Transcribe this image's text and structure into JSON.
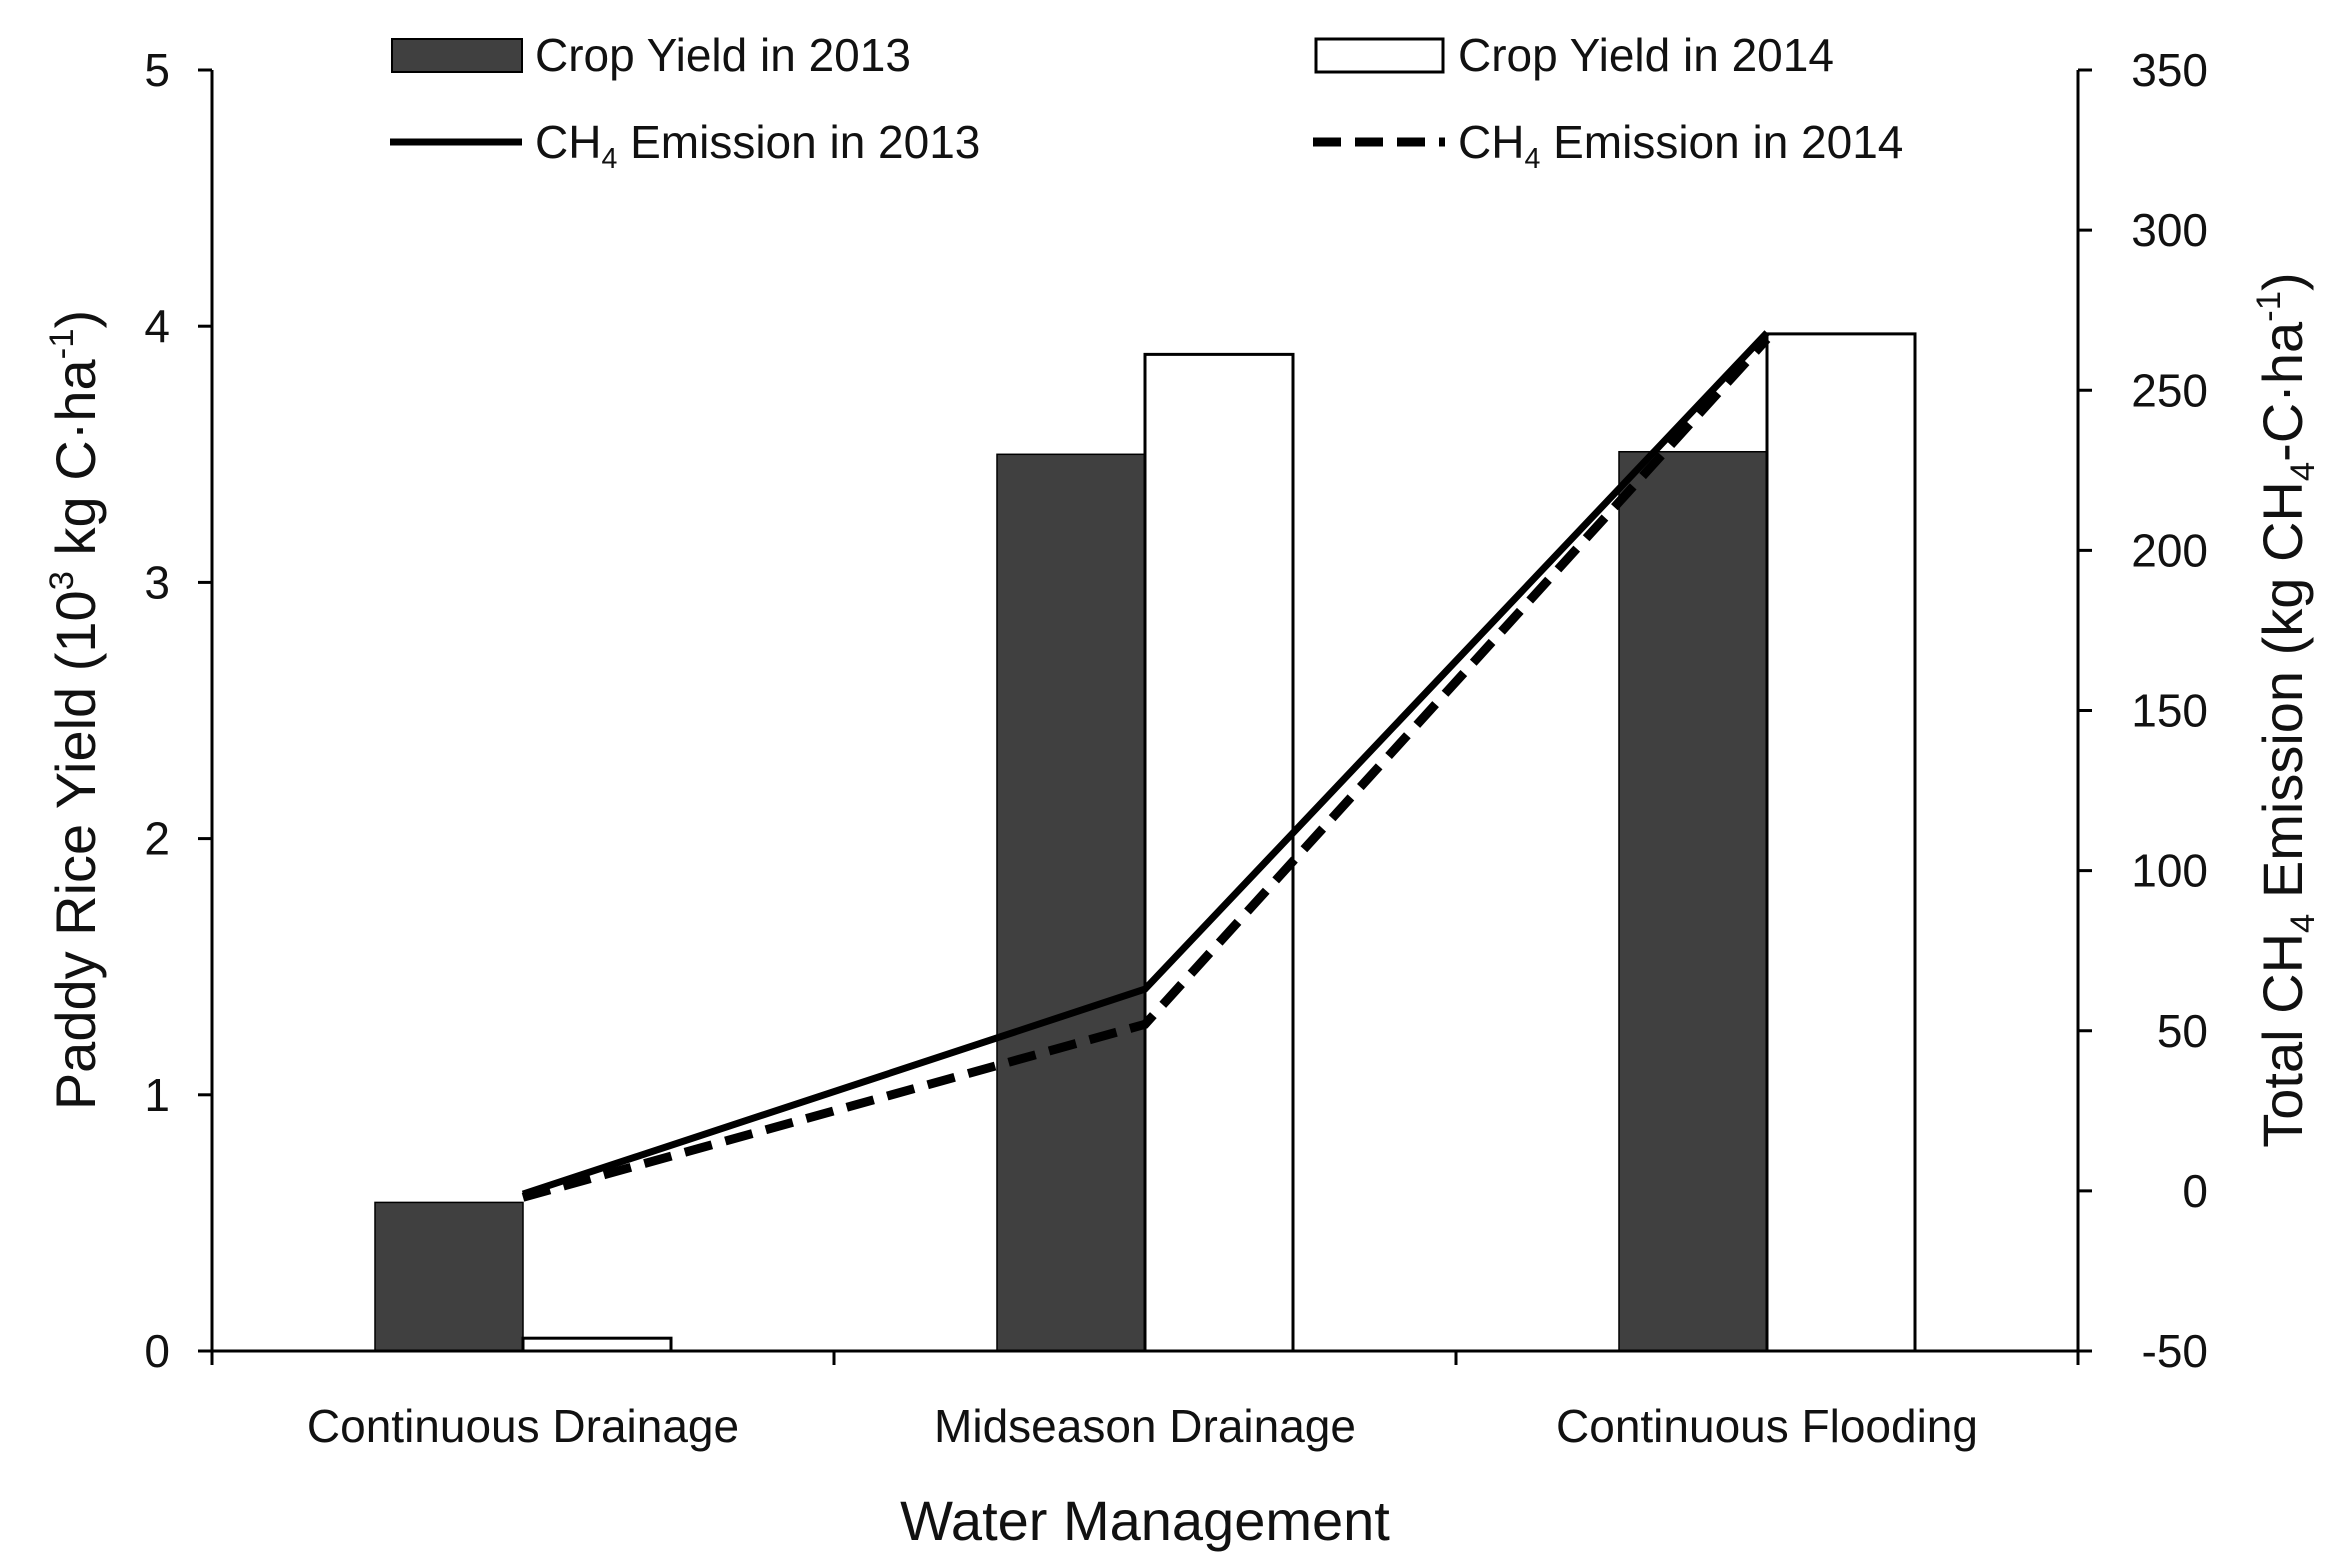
{
  "chart_data": {
    "type": "bar",
    "categories": [
      "Continuous Drainage",
      "Midseason Drainage",
      "Continuous Flooding"
    ],
    "series": [
      {
        "name": "Crop Yield in 2013",
        "kind": "bar",
        "axis": "left",
        "values": [
          0.58,
          3.5,
          3.51
        ],
        "color": "#404040"
      },
      {
        "name": "Crop Yield in 2014",
        "kind": "bar",
        "axis": "left",
        "values": [
          0.05,
          3.89,
          3.97
        ],
        "color": "#ffffff"
      },
      {
        "name": "CH4 Emission in 2013",
        "kind": "line",
        "style": "solid",
        "axis": "right",
        "values": [
          -1,
          63,
          268
        ],
        "color": "#000000"
      },
      {
        "name": "CH4 Emission in 2014",
        "kind": "line",
        "style": "dashed",
        "axis": "right",
        "values": [
          -2,
          52,
          266
        ],
        "color": "#000000"
      }
    ],
    "xlabel": "Water Management",
    "ylabel": {
      "main": "Paddy Rice Yield (10",
      "sup1": "3",
      "mid": " kg C·ha",
      "sup2": "-1",
      "end": ")"
    },
    "y2label": {
      "main": "Total CH",
      "sub1": "4",
      "mid": " Emission (kg CH",
      "sub2": "4",
      "mid2": "-C·ha",
      "sup": "-1",
      "end": ")"
    },
    "ylim": [
      0,
      5
    ],
    "y2lim": [
      -50,
      350
    ],
    "yticks": [
      "0",
      "1",
      "2",
      "3",
      "4",
      "5"
    ],
    "y2ticks": [
      "-50",
      "0",
      "50",
      "100",
      "150",
      "200",
      "250",
      "300",
      "350"
    ],
    "legend": {
      "position": "top",
      "items": [
        {
          "label": "Crop Yield in 2013",
          "icon": "dark-bar-swatch"
        },
        {
          "label": "Crop Yield in 2014",
          "icon": "white-bar-swatch"
        },
        {
          "label_main": "CH",
          "label_sub": "4",
          "label_rest": " Emission in 2013",
          "icon": "solid-line-swatch"
        },
        {
          "label_main": "CH",
          "label_sub": "4",
          "label_rest": " Emission in 2014",
          "icon": "dashed-line-swatch"
        }
      ]
    },
    "grid": false
  }
}
